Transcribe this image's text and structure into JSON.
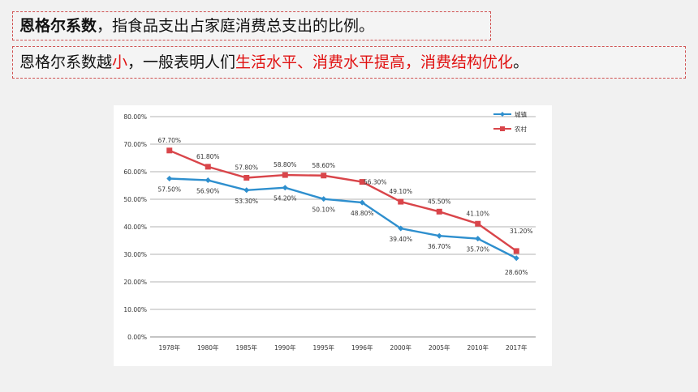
{
  "line1": {
    "bold": "恩格尔系数",
    "rest": "，指食品支出占家庭消费总支出的比例。"
  },
  "line2": {
    "p1": "恩格尔系数越",
    "p2": "小",
    "p3": "，一般表明人们",
    "p4": "生活水平、消费水平提高，消费结构优化",
    "p5": "。"
  },
  "colors": {
    "urban": "#2e8fce",
    "rural": "#d9454a",
    "accent_red": "#e01010"
  },
  "chart_data": {
    "type": "line",
    "categories": [
      "1978年",
      "1980年",
      "1985年",
      "1990年",
      "1995年",
      "1996年",
      "2000年",
      "2005年",
      "2010年",
      "2017年"
    ],
    "series": [
      {
        "name": "城镇",
        "values": [
          57.5,
          56.9,
          53.3,
          54.2,
          50.1,
          48.8,
          39.4,
          36.7,
          35.7,
          28.6
        ],
        "labels": [
          "57.50%",
          "56.90%",
          "53.30%",
          "54.20%",
          "50.10%",
          "48.80%",
          "39.40%",
          "36.70%",
          "35.70%",
          "28.60%"
        ]
      },
      {
        "name": "农村",
        "values": [
          67.7,
          61.8,
          57.8,
          58.8,
          58.6,
          56.3,
          49.1,
          45.5,
          41.1,
          31.2
        ],
        "labels": [
          "67.70%",
          "61.80%",
          "57.80%",
          "58.80%",
          "58.60%",
          "56.30%",
          "49.10%",
          "45.50%",
          "41.10%",
          "31.20%"
        ]
      }
    ],
    "yticks": [
      "0.00%",
      "10.00%",
      "20.00%",
      "30.00%",
      "40.00%",
      "50.00%",
      "60.00%",
      "70.00%",
      "80.00%"
    ],
    "ylim": [
      0,
      80
    ],
    "grid": true,
    "legend": "top-right"
  }
}
